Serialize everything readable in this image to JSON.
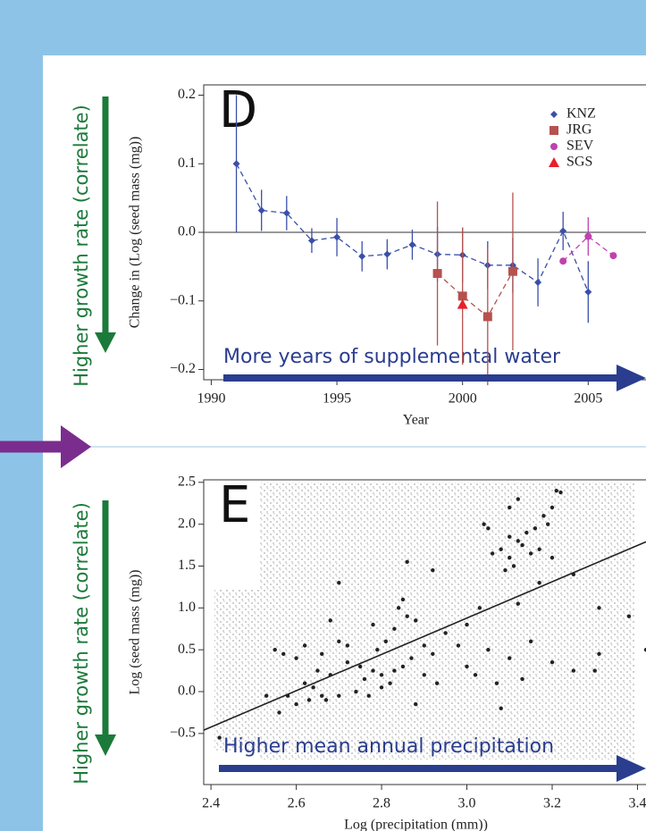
{
  "chart_data": [
    {
      "type": "errorbar-line",
      "panel_label": "D",
      "y_label": "Change in (Log (seed mass (mg))",
      "x_label": "Year",
      "annotation": "More years of supplemental water",
      "side_label": "Higher growth rate (correlate)",
      "xlim": [
        1989.7,
        2007.3
      ],
      "ylim": [
        -0.215,
        0.215
      ],
      "xticks": [
        1990,
        1995,
        2000,
        2005
      ],
      "yticks": [
        {
          "value": -0.2,
          "label": "−0.2"
        },
        {
          "value": -0.1,
          "label": "−0.1"
        },
        {
          "value": 0,
          "label": "0.0"
        },
        0.1,
        0.2
      ],
      "zero_line": true,
      "legend": "top-right",
      "series": [
        {
          "name": "KNZ",
          "color": "#3a4fa8",
          "marker": "diamond",
          "x": [
            1991,
            1992,
            1993,
            1994,
            1995,
            1996,
            1997,
            1998,
            1999,
            2000,
            2001,
            2002,
            2003,
            2004,
            2005
          ],
          "values": [
            0.1,
            0.032,
            0.028,
            -0.012,
            -0.007,
            -0.035,
            -0.032,
            -0.018,
            -0.032,
            -0.033,
            -0.048,
            -0.048,
            -0.073,
            0.002,
            -0.087
          ],
          "errors": [
            0.1,
            0.03,
            0.025,
            0.018,
            0.028,
            0.022,
            0.022,
            0.022,
            0.04,
            0.04,
            0.035,
            0.04,
            0.035,
            0.028,
            0.045
          ]
        },
        {
          "name": "JRG",
          "color": "#b5524e",
          "marker": "square",
          "x": [
            1999,
            2000,
            2001,
            2002
          ],
          "values": [
            -0.06,
            -0.093,
            -0.123,
            -0.057
          ],
          "errors": [
            0.105,
            0.1,
            0.1,
            0.115
          ]
        },
        {
          "name": "SEV",
          "color": "#c040b0",
          "marker": "circle",
          "x": [
            2004,
            2005,
            2006
          ],
          "values": [
            -0.042,
            -0.006,
            -0.034
          ],
          "errors": [
            null,
            0.028,
            null
          ]
        },
        {
          "name": "SGS",
          "color": "#e8202a",
          "marker": "triangle",
          "x": [
            2000
          ],
          "values": [
            -0.105
          ],
          "errors": [
            null
          ]
        }
      ]
    },
    {
      "type": "scatter",
      "panel_label": "E",
      "y_label": "Log (seed mass (mg))",
      "x_label": "Log (precipitation (mm))",
      "annotation": "Higher mean annual precipitation",
      "side_label": "Higher growth rate (correlate)",
      "xlim": [
        2.383,
        3.42
      ],
      "ylim": [
        -1.11,
        2.53
      ],
      "xticks": [
        2.4,
        2.6,
        2.8,
        {
          "value": 3,
          "label": "3.0"
        },
        3.2,
        3.4
      ],
      "yticks": [
        {
          "value": -0.5,
          "label": "−0.5"
        },
        {
          "value": 0,
          "label": "0.0"
        },
        0.5,
        {
          "value": 1,
          "label": "1.0"
        },
        1.5,
        {
          "value": 2,
          "label": "2.0"
        },
        2.5
      ],
      "color": "#222222",
      "x": [
        3.08,
        3.1,
        3.12,
        3.13,
        3.15,
        3.1,
        3.14,
        3.16,
        3.18,
        3.2,
        3.21,
        3.22,
        3.19,
        3.17,
        3.11,
        3.09,
        3.06,
        3.05,
        3.04,
        3.1,
        3.12,
        3.2,
        3.25,
        3.17,
        3.12,
        3.31,
        3.38,
        3.31,
        3.3,
        3.42,
        3.25,
        3.15,
        3.03,
        3.0,
        3.05,
        3.1,
        3.0,
        2.98,
        3.02,
        3.07,
        3.13,
        3.2,
        3.08,
        2.7,
        2.72,
        2.75,
        2.78,
        2.8,
        2.82,
        2.85,
        2.87,
        2.9,
        2.92,
        2.95,
        2.85,
        2.84,
        2.86,
        2.83,
        2.88,
        2.81,
        2.79,
        2.76,
        2.74,
        2.77,
        2.8,
        2.83,
        2.9,
        2.93,
        2.88,
        2.86,
        2.92,
        2.7,
        2.68,
        2.72,
        2.66,
        2.78,
        2.55,
        2.57,
        2.6,
        2.62,
        2.64,
        2.66,
        2.6,
        2.58,
        2.56,
        2.53,
        2.65,
        2.68,
        2.63,
        2.67,
        2.7,
        2.62,
        2.42
      ],
      "values": [
        1.7,
        1.6,
        1.8,
        1.75,
        1.65,
        1.85,
        1.9,
        1.95,
        2.1,
        2.2,
        2.4,
        2.38,
        2.0,
        1.7,
        1.5,
        1.45,
        1.65,
        1.95,
        2.0,
        2.2,
        2.3,
        1.6,
        1.4,
        1.3,
        1.05,
        1.0,
        0.9,
        0.45,
        0.25,
        0.5,
        0.25,
        0.6,
        1.0,
        0.8,
        0.5,
        0.4,
        0.3,
        0.55,
        0.2,
        0.1,
        0.15,
        0.35,
        -0.2,
        0.6,
        0.35,
        0.3,
        0.25,
        0.2,
        0.1,
        0.3,
        0.4,
        0.55,
        0.45,
        0.7,
        1.1,
        1.0,
        0.9,
        0.75,
        0.85,
        0.6,
        0.5,
        0.15,
        0.0,
        -0.05,
        0.05,
        0.25,
        0.2,
        0.1,
        -0.15,
        1.55,
        1.45,
        1.3,
        0.85,
        0.55,
        0.45,
        0.8,
        0.5,
        0.45,
        0.4,
        0.1,
        0.05,
        -0.05,
        -0.15,
        -0.05,
        -0.25,
        -0.05,
        0.25,
        0.2,
        -0.1,
        -0.1,
        -0.05,
        0.55,
        -0.55
      ],
      "fit_line": {
        "x": [
          2.383,
          3.42
        ],
        "values": [
          -0.46,
          1.79
        ]
      }
    }
  ]
}
